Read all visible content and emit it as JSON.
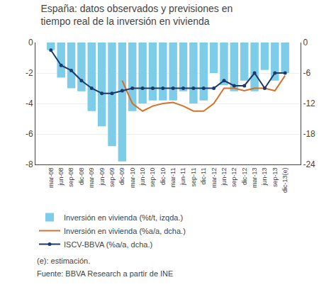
{
  "chart_data": {
    "type": "bar",
    "title": "España: datos observados y previsiones en tiempo real de la inversión en vivienda",
    "categories": [
      "mar-08",
      "jun-08",
      "sep-08",
      "dic-08",
      "mar-09",
      "jun-09",
      "sep-09",
      "dic-09",
      "mar-10",
      "jun-10",
      "sep-10",
      "dic-10",
      "mar-11",
      "jun-11",
      "sep-11",
      "dic-11",
      "mar-12",
      "jun-12",
      "sep-12",
      "dic-12",
      "mar-13",
      "jun-13",
      "sep-13",
      "dic-13(e)"
    ],
    "series": [
      {
        "name": "Inversión en vivienda (%t/t, izqda.)",
        "type": "bar",
        "color": "#7ecde8",
        "values": [
          -0.5,
          -2.3,
          -3.0,
          -3.2,
          -4.5,
          -5.5,
          -6.8,
          -7.8,
          -4.5,
          -4.0,
          -3.8,
          -3.8,
          -3.8,
          -3.2,
          -4.0,
          -3.8,
          -2.0,
          -2.8,
          -3.2,
          -2.5,
          -3.2,
          -1.8,
          -2.5,
          -2.0
        ]
      },
      {
        "name": "Inversión en vivienda (%a/a, dcha.)",
        "type": "line",
        "color": "#d4722a",
        "axis": "y2",
        "line_style": "solid",
        "values": [
          null,
          null,
          null,
          null,
          null,
          null,
          null,
          -7.5,
          -12.0,
          -13.5,
          -12.5,
          -12.0,
          -11.8,
          -12.5,
          -13.5,
          -13.5,
          -12.0,
          -9.0,
          -9.0,
          -9.5,
          -9.0,
          -9.0,
          -9.5,
          -6.5
        ]
      },
      {
        "name": "ISCV-BBVA (%a/a, dcha.)",
        "type": "line",
        "color": "#1c3a6b",
        "axis": "y2",
        "line_style": "solid",
        "marker": "circle",
        "values": [
          -1.5,
          -4.5,
          -5.5,
          -7.5,
          -9.0,
          -10.0,
          -10.0,
          -9.5,
          -9.0,
          -9.0,
          -9.0,
          -9.0,
          -9.0,
          -9.0,
          -9.0,
          -9.0,
          -9.0,
          -7.5,
          -8.5,
          -8.5,
          -6.0,
          -9.0,
          -6.0,
          -6.0
        ]
      }
    ],
    "ylim": [
      -8,
      0
    ],
    "yticks": [
      0,
      -2,
      -4,
      -6,
      -8
    ],
    "y2lim": [
      -24,
      0
    ],
    "y2ticks": [
      0,
      -6,
      -12,
      -18,
      -24
    ],
    "grid": true,
    "legend": "bottom",
    "annotations": [
      "(e): estimación.",
      "Fuente: BBVA Research a partir de INE"
    ]
  }
}
